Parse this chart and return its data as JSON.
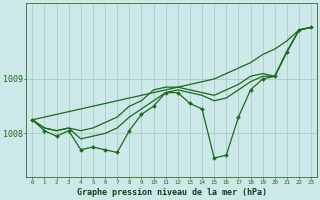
{
  "title": "Graphe pression niveau de la mer (hPa)",
  "hours": [
    0,
    1,
    2,
    3,
    4,
    5,
    6,
    7,
    8,
    9,
    10,
    11,
    12,
    13,
    14,
    15,
    16,
    17,
    18,
    19,
    20,
    21,
    22,
    23
  ],
  "background_color": "#cce8e8",
  "grid_color": "#aacccc",
  "line_color": "#1a6b1a",
  "yticks": [
    1008,
    1009
  ],
  "ylim": [
    1007.2,
    1010.4
  ],
  "xlim": [
    -0.5,
    23.5
  ],
  "series_main": [
    1008.25,
    1008.05,
    1007.95,
    1008.05,
    1007.7,
    1007.75,
    1007.7,
    1007.65,
    1008.05,
    1008.35,
    1008.5,
    1008.75,
    1008.75,
    1008.55,
    1008.45,
    1007.55,
    1007.6,
    1008.3,
    1008.8,
    1009.0,
    1009.05,
    1009.5,
    1009.9,
    1009.95
  ],
  "series_upper": [
    1008.25,
    1008.1,
    1008.05,
    1008.1,
    1008.05,
    1008.1,
    1008.2,
    1008.3,
    1008.5,
    1008.6,
    1008.8,
    1008.85,
    1008.85,
    1008.8,
    1008.75,
    1008.7,
    1008.8,
    1008.9,
    1009.05,
    1009.1,
    1009.05,
    1009.5,
    1009.9,
    1009.95
  ],
  "series_trend": [
    1008.25,
    1008.3,
    1008.35,
    1008.4,
    1008.45,
    1008.5,
    1008.55,
    1008.6,
    1008.65,
    1008.7,
    1008.75,
    1008.8,
    1008.85,
    1008.9,
    1008.95,
    1009.0,
    1009.1,
    1009.2,
    1009.3,
    1009.45,
    1009.55,
    1009.7,
    1009.9,
    1009.95
  ],
  "series_smooth": [
    1008.25,
    1008.1,
    1008.05,
    1008.1,
    1007.9,
    1007.95,
    1008.0,
    1008.1,
    1008.3,
    1008.45,
    1008.6,
    1008.75,
    1008.8,
    1008.75,
    1008.7,
    1008.6,
    1008.65,
    1008.8,
    1008.95,
    1009.05,
    1009.05,
    1009.5,
    1009.9,
    1009.95
  ],
  "ylabel_fontsize": 6,
  "xlabel_fontsize": 4.2,
  "title_fontsize": 6,
  "lw": 0.9,
  "ms": 2.0
}
